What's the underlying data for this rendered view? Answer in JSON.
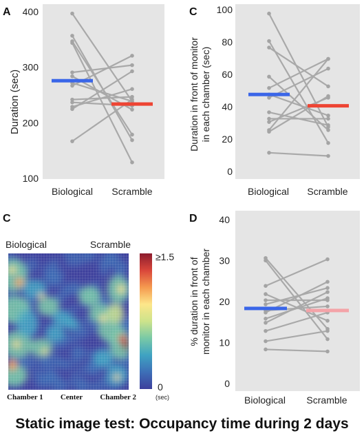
{
  "caption": "Static image test: Occupancy time during 2 days",
  "chart_data": [
    {
      "panel_label": "A",
      "type": "scatter",
      "ylabel": "Duration (sec)",
      "ylim": [
        100,
        400
      ],
      "yticks": [
        100,
        200,
        300,
        400
      ],
      "categories": [
        "Biological",
        "Scramble"
      ],
      "pairs": [
        [
          398,
          240
        ],
        [
          358,
          170
        ],
        [
          348,
          180
        ],
        [
          345,
          130
        ],
        [
          292,
          305
        ],
        [
          285,
          225
        ],
        [
          273,
          240
        ],
        [
          268,
          322
        ],
        [
          243,
          248
        ],
        [
          238,
          232
        ],
        [
          230,
          262
        ],
        [
          226,
          294
        ],
        [
          168,
          243
        ]
      ],
      "means": [
        277,
        235
      ],
      "mean_colors": [
        "#3a66e8",
        "#ee4433"
      ],
      "grid": false,
      "background": "#e5e5e5"
    },
    {
      "panel_label": "C",
      "type": "scatter",
      "ylabel": "Duration in front of monitor in each chamber (sec)",
      "ylim": [
        0,
        100
      ],
      "yticks": [
        0,
        20,
        40,
        60,
        80,
        100
      ],
      "categories": [
        "Biological",
        "Scramble"
      ],
      "pairs": [
        [
          98,
          28
        ],
        [
          81,
          18
        ],
        [
          77,
          53
        ],
        [
          59,
          26
        ],
        [
          52,
          70
        ],
        [
          48,
          35
        ],
        [
          46,
          64
        ],
        [
          37,
          29
        ],
        [
          33,
          33
        ],
        [
          31,
          46
        ],
        [
          26,
          70
        ],
        [
          25,
          47
        ],
        [
          12,
          10
        ]
      ],
      "means": [
        48,
        41
      ],
      "mean_colors": [
        "#3a66e8",
        "#ee4433"
      ],
      "grid": false,
      "background": "#e5e5e5"
    },
    {
      "panel_label": "C",
      "type": "heatmap",
      "column_labels": [
        "Biological",
        "Scramble"
      ],
      "x_labels": [
        "Chamber 1",
        "Center",
        "Chamber 2"
      ],
      "colorbar_max_label": "≥1.5",
      "colorbar_min_label": "0",
      "colorbar_unit": "(sec)",
      "color_scale": [
        "#3d3f9c",
        "#3d6fb7",
        "#3fa3c2",
        "#79c9a6",
        "#cde38b",
        "#fde68a",
        "#f59a4f",
        "#d9463a",
        "#8c1c2e"
      ]
    },
    {
      "panel_label": "D",
      "type": "scatter",
      "ylabel": "% duration in front of monitor in each chamber",
      "ylim": [
        0,
        40
      ],
      "yticks": [
        0,
        10,
        20,
        30,
        40
      ],
      "categories": [
        "Biological",
        "Scramble"
      ],
      "pairs": [
        [
          30.8,
          13.5
        ],
        [
          30.2,
          11
        ],
        [
          24,
          30.5
        ],
        [
          22,
          15.5
        ],
        [
          20.5,
          20.5
        ],
        [
          19.5,
          23.5
        ],
        [
          18,
          19
        ],
        [
          17.5,
          25
        ],
        [
          16,
          21
        ],
        [
          15,
          22.5
        ],
        [
          13,
          17.5
        ],
        [
          10.5,
          13
        ],
        [
          8.5,
          8
        ]
      ],
      "means": [
        18.5,
        18
      ],
      "mean_colors": [
        "#3a66e8",
        "#f4a3a8"
      ],
      "grid": false,
      "background": "#e5e5e5"
    }
  ]
}
